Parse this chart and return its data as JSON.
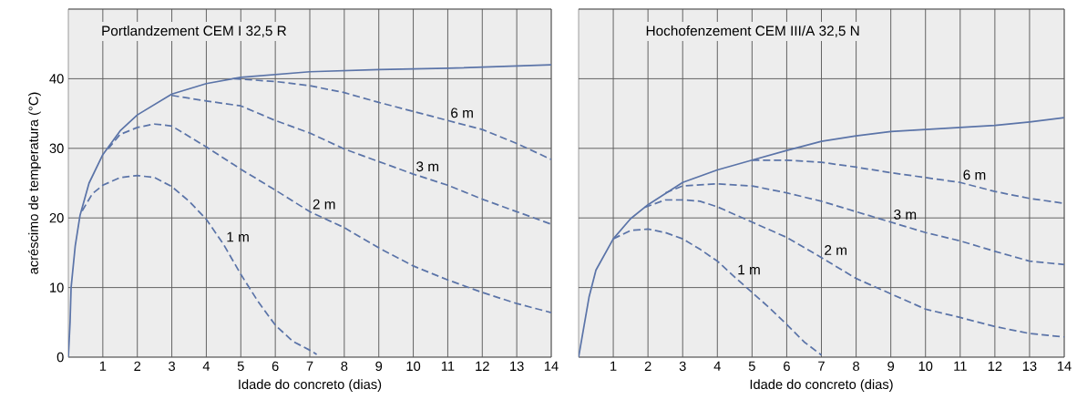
{
  "chart_data": [
    {
      "type": "line",
      "title": "Portlandzement CEM I 32,5 R",
      "xlabel": "Idade do concreto (dias)",
      "ylabel": "acréscimo de temperatura (°C)",
      "xlim": [
        0,
        14
      ],
      "ylim": [
        0,
        50
      ],
      "xticks": [
        1,
        2,
        3,
        4,
        5,
        6,
        7,
        8,
        9,
        10,
        11,
        12,
        13,
        14
      ],
      "yticks": [
        0,
        10,
        20,
        30,
        40,
        {
          "value": 50,
          "label": null
        }
      ],
      "grid": true,
      "marker": "none",
      "series": [
        {
          "color": "#5b74a8",
          "line_style": "solid",
          "x": [
            0,
            0.05,
            0.08,
            0.2,
            0.34,
            0.6,
            1,
            1.5,
            2,
            3,
            4,
            5,
            7,
            9,
            11,
            14
          ],
          "values": [
            0,
            5,
            10,
            16,
            20.4,
            25,
            29.1,
            32.5,
            34.8,
            37.8,
            39.3,
            40.2,
            41,
            41.3,
            41.5,
            42
          ]
        },
        {
          "name": "1 m",
          "color": "#5b74a8",
          "line_style": "dashed",
          "x": [
            0.4,
            0.7,
            1,
            1.5,
            2,
            2.5,
            3,
            3.5,
            4,
            4.5,
            5,
            5.5,
            6,
            6.5,
            7,
            7.2
          ],
          "values": [
            21,
            23.5,
            24.7,
            25.8,
            26.1,
            25.8,
            24.5,
            22.4,
            19.8,
            16.2,
            11.9,
            8,
            4.6,
            2.3,
            1,
            0.4
          ]
        },
        {
          "name": "2 m",
          "color": "#5b74a8",
          "line_style": "dashed",
          "x": [
            1.15,
            1.5,
            2,
            2.5,
            3,
            4,
            5,
            6,
            7,
            8,
            9,
            10,
            11,
            12,
            13,
            14
          ],
          "values": [
            29.9,
            32,
            33,
            33.5,
            33.2,
            30.2,
            27,
            24,
            20.9,
            18.6,
            15.7,
            13.1,
            11.1,
            9.3,
            7.7,
            6.4
          ]
        },
        {
          "name": "3 m",
          "color": "#5b74a8",
          "line_style": "dashed",
          "x": [
            3,
            4,
            5,
            6,
            7,
            8,
            9,
            10,
            11,
            12,
            13,
            14
          ],
          "values": [
            37.6,
            36.8,
            36.1,
            34,
            32.2,
            29.9,
            28.1,
            26.3,
            24.7,
            22.7,
            20.9,
            19.1
          ]
        },
        {
          "name": "6 m",
          "color": "#5b74a8",
          "line_style": "dashed",
          "x": [
            4.8,
            6,
            7,
            8,
            9,
            10,
            11,
            12,
            13,
            14
          ],
          "values": [
            40,
            39.6,
            39,
            38,
            36.6,
            35.3,
            34,
            32.7,
            30.7,
            28.4
          ]
        }
      ]
    },
    {
      "type": "line",
      "title": "Hochofenzement CEM III/A 32,5 N",
      "xlabel": "Idade do concreto (dias)",
      "xlim": [
        0,
        14
      ],
      "ylim": [
        0,
        50
      ],
      "xticks": [
        1,
        2,
        3,
        4,
        5,
        6,
        7,
        8,
        9,
        10,
        11,
        12,
        13,
        14
      ],
      "yticks": [
        0,
        10,
        20,
        30,
        40,
        50
      ],
      "tick_labels": "x",
      "grid": true,
      "marker": "none",
      "series": [
        {
          "color": "#5b74a8",
          "line_style": "solid",
          "x": [
            0,
            0.3,
            0.5,
            1,
            1.5,
            2,
            3,
            4,
            5,
            6,
            7,
            8,
            9,
            10,
            11,
            12,
            13,
            14
          ],
          "values": [
            0,
            8.6,
            12.5,
            17,
            19.9,
            21.9,
            25.1,
            26.9,
            28.3,
            29.7,
            31,
            31.8,
            32.4,
            32.7,
            33,
            33.3,
            33.8,
            34.4
          ]
        },
        {
          "name": "1 m",
          "color": "#5b74a8",
          "line_style": "dashed",
          "x": [
            1,
            1.5,
            2,
            2.5,
            3,
            3.5,
            4,
            4.5,
            5,
            5.5,
            6,
            6.5,
            7
          ],
          "values": [
            17,
            18.2,
            18.4,
            17.9,
            17,
            15.5,
            13.8,
            11.5,
            9.3,
            7.1,
            4.7,
            2.2,
            0.3
          ]
        },
        {
          "name": "2 m",
          "color": "#5b74a8",
          "line_style": "dashed",
          "x": [
            1.9,
            2.5,
            3,
            3.5,
            4,
            5,
            6,
            7,
            8,
            9,
            10,
            11,
            12,
            13,
            14
          ],
          "values": [
            21.5,
            22.6,
            22.6,
            22.4,
            21.6,
            19.4,
            17.2,
            14.3,
            11.3,
            9.1,
            6.9,
            5.7,
            4.4,
            3.4,
            2.9
          ]
        },
        {
          "name": "3 m",
          "color": "#5b74a8",
          "line_style": "dashed",
          "x": [
            2.5,
            3,
            4,
            5,
            6,
            7,
            8,
            9,
            10,
            11,
            12,
            13,
            14
          ],
          "values": [
            23.6,
            24.6,
            24.9,
            24.6,
            23.6,
            22.4,
            20.9,
            19.4,
            17.9,
            16.7,
            15.2,
            13.8,
            13.3
          ]
        },
        {
          "name": "6 m",
          "color": "#5b74a8",
          "line_style": "dashed",
          "x": [
            5,
            6,
            7,
            8,
            9,
            10,
            11,
            12,
            13,
            14
          ],
          "values": [
            28.3,
            28.3,
            28,
            27.3,
            26.5,
            25.8,
            25.1,
            23.8,
            22.8,
            22.1
          ]
        }
      ]
    }
  ]
}
